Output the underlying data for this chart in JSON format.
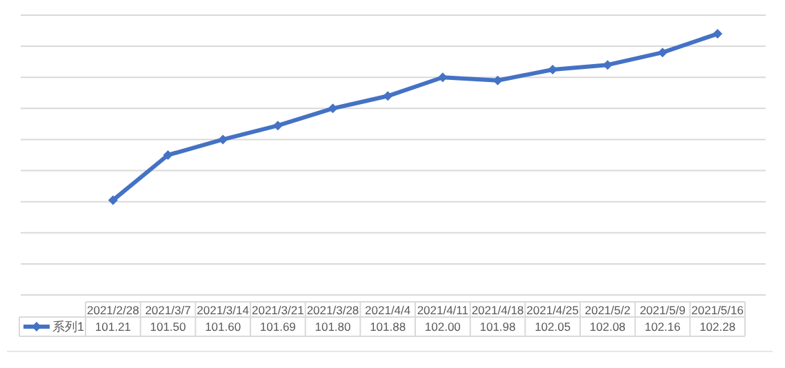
{
  "chart_data": {
    "type": "line",
    "categories": [
      "2021/2/28",
      "2021/3/7",
      "2021/3/14",
      "2021/3/21",
      "2021/3/28",
      "2021/4/4",
      "2021/4/11",
      "2021/4/18",
      "2021/4/25",
      "2021/5/2",
      "2021/5/9",
      "2021/5/16"
    ],
    "series": [
      {
        "name": "系列1",
        "color": "#4472c4",
        "values": [
          101.21,
          101.5,
          101.6,
          101.69,
          101.8,
          101.88,
          102.0,
          101.98,
          102.05,
          102.08,
          102.16,
          102.28
        ],
        "value_labels": [
          "101.21",
          "101.50",
          "101.60",
          "101.69",
          "101.80",
          "101.88",
          "102.00",
          "101.98",
          "102.05",
          "102.08",
          "102.16",
          "102.28"
        ]
      }
    ],
    "ylim": [
      100.6,
      102.4
    ],
    "yticks": [
      {
        "value": 100.6,
        "label": null
      },
      {
        "value": 100.8,
        "label": null
      },
      {
        "value": 101.0,
        "label": null
      },
      {
        "value": 101.2,
        "label": null
      },
      {
        "value": 101.4,
        "label": null
      },
      {
        "value": 101.6,
        "label": null
      },
      {
        "value": 101.8,
        "label": null
      },
      {
        "value": 102.0,
        "label": null
      },
      {
        "value": 102.2,
        "label": null
      },
      {
        "value": 102.4,
        "label": null
      }
    ],
    "grid": "y",
    "marker": "diamond",
    "line_style": "solid",
    "legend": "bottom left"
  }
}
